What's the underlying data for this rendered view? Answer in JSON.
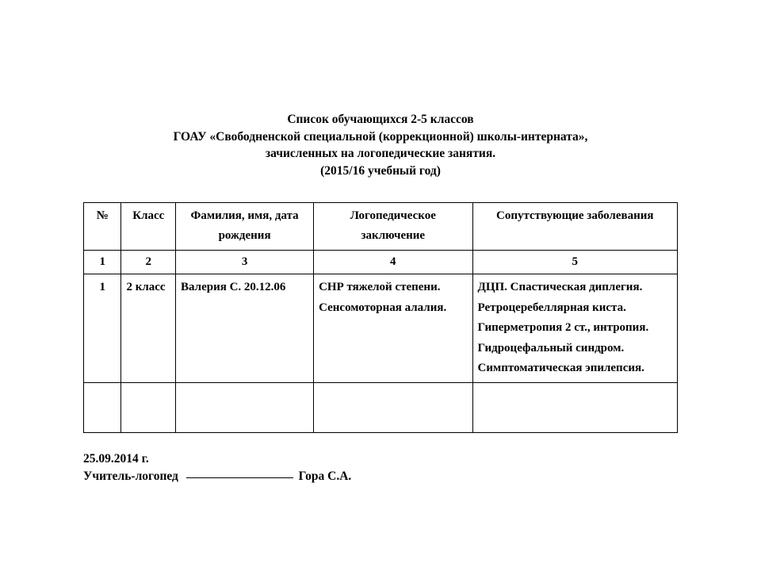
{
  "title": {
    "line1": "Список обучающихся 2-5 классов",
    "line2": "ГОАУ «Свободненской специальной (коррекционной) школы-интерната»,",
    "line3": "зачисленных на логопедические занятия.",
    "line4": "(2015/16 учебный год)"
  },
  "table": {
    "headers": {
      "num": "№",
      "klass": "Класс",
      "name": "Фамилия, имя, дата рождения",
      "diag": "Логопедическое заключение",
      "assoc": "Сопутствующие заболевания"
    },
    "numrow": {
      "c1": "1",
      "c2": "2",
      "c3": "3",
      "c4": "4",
      "c5": "5"
    },
    "rows": [
      {
        "c1": "1",
        "c2": "2 класс",
        "c3": "Валерия С. 20.12.06",
        "c4": "СНР тяжелой степени. Сенсомоторная алалия.",
        "c5": "ДЦП. Спастическая диплегия. Ретроцеребеллярная киста. Гиперметропия 2 ст., интропия. Гидроцефальный синдром. Симптоматическая эпилепсия."
      }
    ]
  },
  "footer": {
    "date": "25.09.2014 г.",
    "role": "Учитель-логопед",
    "name": "Гора С.А."
  }
}
